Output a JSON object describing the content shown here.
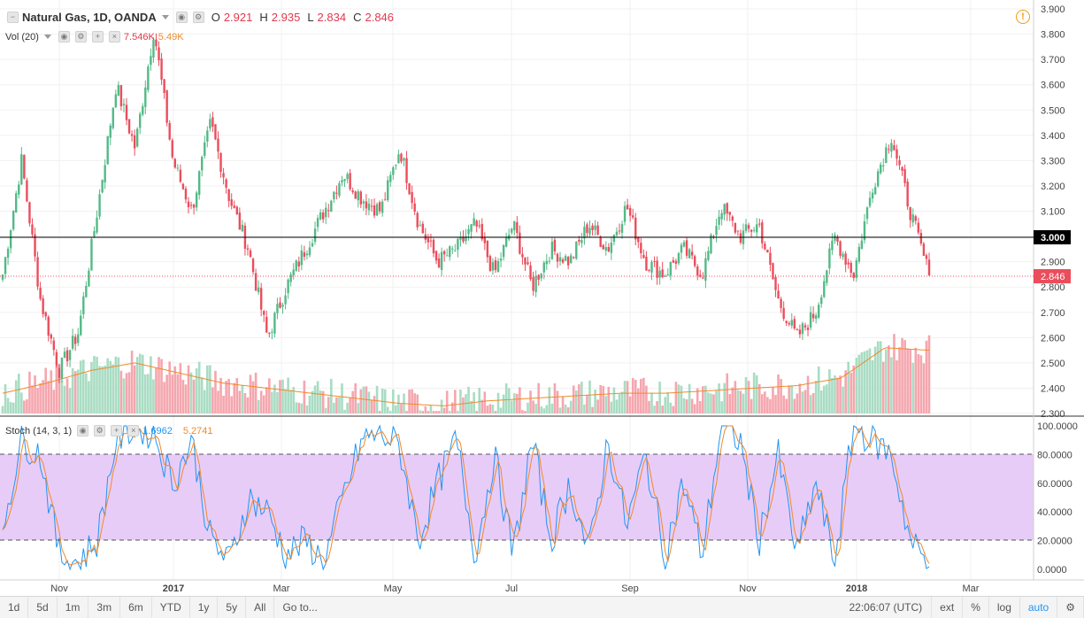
{
  "instrument": {
    "title": "Natural Gas, 1D, OANDA",
    "open_label": "O",
    "open": "2.921",
    "high_label": "H",
    "high": "2.935",
    "low_label": "L",
    "low": "2.834",
    "close_label": "C",
    "close": "2.846"
  },
  "volume_legend": {
    "label": "Vol (20)",
    "value": "7.546K",
    "ma_value": "5.49K"
  },
  "stoch_legend": {
    "label": "Stoch (14, 3, 1)",
    "k_value": "1.6962",
    "d_value": "5.2741"
  },
  "price_axis": {
    "ticks": [
      "3.900",
      "3.800",
      "3.700",
      "3.600",
      "3.500",
      "3.400",
      "3.300",
      "3.200",
      "3.100",
      "3.000",
      "2.900",
      "2.800",
      "2.700",
      "2.600",
      "2.500",
      "2.400",
      "2.300"
    ],
    "horizontal_line_label": "3.000",
    "last_price_label": "2.846"
  },
  "stoch_axis": {
    "ticks": [
      "100.0000",
      "80.0000",
      "60.0000",
      "40.0000",
      "20.0000",
      "0.0000"
    ]
  },
  "time_axis": {
    "labels": [
      "Nov",
      "2017",
      "Mar",
      "May",
      "Jul",
      "Sep",
      "Nov",
      "2018",
      "Mar"
    ]
  },
  "bottom_bar": {
    "ranges": [
      "1d",
      "5d",
      "1m",
      "3m",
      "6m",
      "YTD",
      "1y",
      "5y",
      "All"
    ],
    "goto_label": "Go to...",
    "clock": "22:06:07 (UTC)",
    "ext_label": "ext",
    "percent_label": "%",
    "log_label": "log",
    "auto_label": "auto"
  },
  "colors": {
    "up": "#53b987",
    "down": "#eb4d5c",
    "volume_up": "#a9dcc3",
    "volume_down": "#f5a6ae",
    "volume_ma": "#f08a2a",
    "stoch_k": "#2196f3",
    "stoch_d": "#f08a2a",
    "stoch_band": "#e5c6f7",
    "last_price": "#eb4d5c"
  },
  "icons": [
    "settings-gear-icon",
    "warning-icon",
    "dropdown-arrow-icon"
  ],
  "chart_data": {
    "type": "candlestick",
    "title": "Natural Gas, 1D, OANDA",
    "ylim": [
      2.3,
      3.9
    ],
    "price_path": [
      {
        "date": "Oct 2016",
        "close": 2.85
      },
      {
        "date": "Oct 2016",
        "close": 3.3
      },
      {
        "date": "Nov 2016",
        "close": 2.75
      },
      {
        "date": "Nov 2016",
        "close": 2.47
      },
      {
        "date": "Nov 2016",
        "close": 2.62
      },
      {
        "date": "Dec 2016",
        "close": 3.1
      },
      {
        "date": "Dec 2016",
        "close": 3.6
      },
      {
        "date": "Dec 2016",
        "close": 3.35
      },
      {
        "date": "Dec 2016",
        "close": 3.82
      },
      {
        "date": "Jan 2017",
        "close": 3.3
      },
      {
        "date": "Jan 2017",
        "close": 3.1
      },
      {
        "date": "Jan 2017",
        "close": 3.45
      },
      {
        "date": "Feb 2017",
        "close": 3.15
      },
      {
        "date": "Feb 2017",
        "close": 2.95
      },
      {
        "date": "Feb 2017",
        "close": 2.6
      },
      {
        "date": "Mar 2017",
        "close": 2.8
      },
      {
        "date": "Mar 2017",
        "close": 2.95
      },
      {
        "date": "Apr 2017",
        "close": 3.1
      },
      {
        "date": "Apr 2017",
        "close": 3.25
      },
      {
        "date": "Apr 2017",
        "close": 3.15
      },
      {
        "date": "May 2017",
        "close": 3.1
      },
      {
        "date": "May 2017",
        "close": 3.35
      },
      {
        "date": "Jun 2017",
        "close": 3.05
      },
      {
        "date": "Jun 2017",
        "close": 2.9
      },
      {
        "date": "Jun 2017",
        "close": 2.95
      },
      {
        "date": "Jul 2017",
        "close": 3.05
      },
      {
        "date": "Jul 2017",
        "close": 2.85
      },
      {
        "date": "Jul 2017",
        "close": 3.05
      },
      {
        "date": "Aug 2017",
        "close": 2.8
      },
      {
        "date": "Aug 2017",
        "close": 2.95
      },
      {
        "date": "Aug 2017",
        "close": 2.9
      },
      {
        "date": "Sep 2017",
        "close": 3.05
      },
      {
        "date": "Sep 2017",
        "close": 2.95
      },
      {
        "date": "Sep 2017",
        "close": 3.12
      },
      {
        "date": "Oct 2017",
        "close": 2.9
      },
      {
        "date": "Oct 2017",
        "close": 2.85
      },
      {
        "date": "Oct 2017",
        "close": 2.95
      },
      {
        "date": "Nov 2017",
        "close": 2.85
      },
      {
        "date": "Nov 2017",
        "close": 3.12
      },
      {
        "date": "Nov 2017",
        "close": 3.0
      },
      {
        "date": "Dec 2017",
        "close": 3.05
      },
      {
        "date": "Dec 2017",
        "close": 2.75
      },
      {
        "date": "Dec 2017",
        "close": 2.6
      },
      {
        "date": "Dec 2017",
        "close": 2.7
      },
      {
        "date": "Jan 2018",
        "close": 3.0
      },
      {
        "date": "Jan 2018",
        "close": 2.85
      },
      {
        "date": "Jan 2018",
        "close": 3.2
      },
      {
        "date": "Jan 2018",
        "close": 3.4
      },
      {
        "date": "Feb 2018",
        "close": 3.1
      },
      {
        "date": "Feb 2018",
        "close": 2.846
      }
    ],
    "reference_line": 3.0,
    "last_price": 2.846,
    "volume_ma_path": [
      2.38,
      2.42,
      2.47,
      2.5,
      2.46,
      2.42,
      2.4,
      2.38,
      2.36,
      2.34,
      2.33,
      2.35,
      2.36,
      2.37,
      2.38,
      2.38,
      2.39,
      2.4,
      2.41,
      2.44,
      2.56,
      2.55
    ],
    "stochastic": {
      "k": [
        30,
        90,
        80,
        10,
        5,
        20,
        90,
        100,
        95,
        60,
        90,
        20,
        5,
        50,
        40,
        10,
        20,
        5,
        50,
        90,
        95,
        85,
        20,
        60,
        90,
        10,
        80,
        10,
        90,
        20,
        60,
        10,
        90,
        30,
        80,
        10,
        60,
        10,
        100,
        90,
        20,
        80,
        10,
        60,
        5,
        100,
        90,
        80,
        20,
        2
      ],
      "d_smoothing": 3,
      "ylim": [
        0,
        100
      ],
      "upper_band": 80,
      "lower_band": 20
    }
  }
}
